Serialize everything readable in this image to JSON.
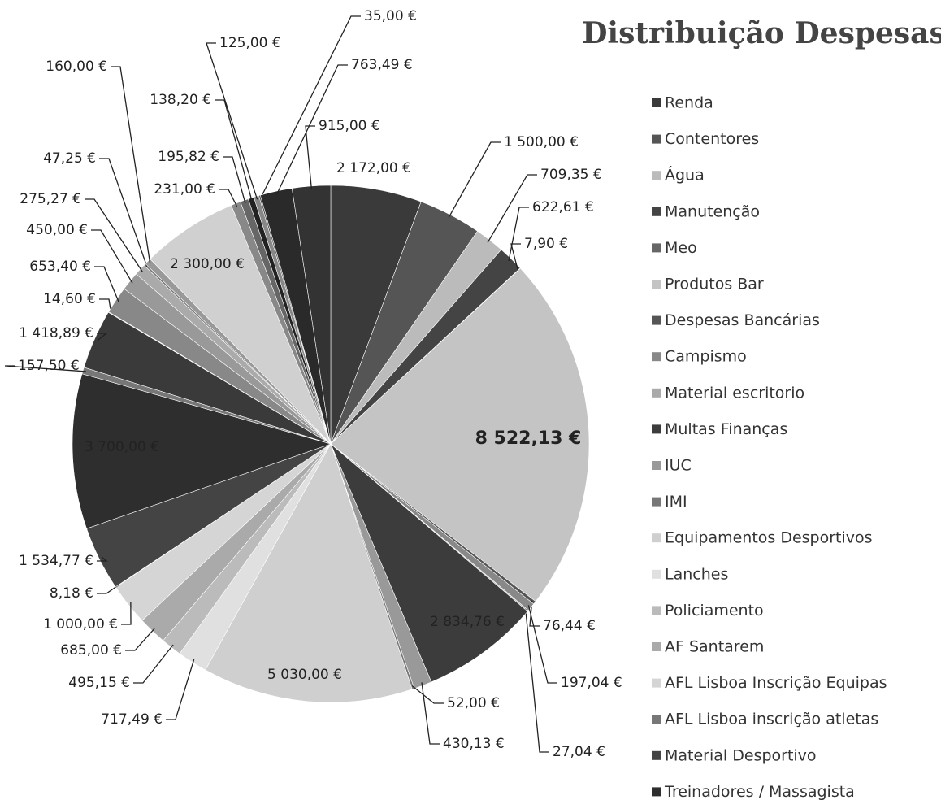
{
  "chart_data": {
    "type": "pie",
    "title": "Distribuição Despesas",
    "categories": [
      "Renda",
      "Contentores",
      "Água",
      "Manutenção",
      "Meo",
      "Produtos Bar",
      "Despesas  Bancárias",
      "Campismo",
      "Material escritorio",
      "Multas Finanças",
      "IUC",
      "IMI",
      "Equipamentos Desportivos",
      "Lanches",
      "Policiamento",
      "AF Santarem",
      "AFL Lisboa Inscrição Equipas",
      "AFL Lisboa inscrição atletas",
      "Material Desportivo",
      "Treinadores /  Massagista",
      null,
      null,
      null,
      null,
      null,
      null,
      null,
      null,
      null,
      null,
      null,
      null,
      null,
      null,
      null,
      null
    ],
    "values": [
      2172,
      1500,
      709.35,
      622.61,
      7.9,
      8522.13,
      76.44,
      197.04,
      27.04,
      2834.76,
      430.13,
      52,
      5030,
      717.49,
      495.15,
      685,
      1000,
      8.18,
      1534.77,
      3700,
      157.5,
      1418.89,
      14.6,
      653.4,
      450,
      275.27,
      47.25,
      160,
      2300,
      231,
      195.82,
      138.2,
      125,
      35,
      763.49,
      915
    ],
    "value_labels": [
      "2 172,00 €",
      "1 500,00 €",
      "709,35 €",
      "622,61 €",
      "7,90 €",
      "8 522,13 €",
      "76,44 €",
      "197,04 €",
      "27,04 €",
      "2 834,76 €",
      "430,13 €",
      "52,00 €",
      "5 030,00 €",
      "717,49 €",
      "495,15 €",
      "685,00 €",
      "1 000,00 €",
      "8,18 €",
      "1 534,77 €",
      "3 700,00 €",
      "157,50 €",
      "1 418,89 €",
      "14,60 €",
      "653,40 €",
      "450,00 €",
      "275,27 €",
      "47,25 €",
      "160,00 €",
      "2 300,00 €",
      "231,00 €",
      "195,82 €",
      "138,20 €",
      "125,00 €",
      "35,00 €",
      "763,49 €",
      "915,00 €"
    ],
    "colors": [
      "#3a3a3a",
      "#555555",
      "#bbbbbb",
      "#444444",
      "#666666",
      "#c4c4c4",
      "#555555",
      "#888888",
      "#aaaaaa",
      "#3c3c3c",
      "#999999",
      "#777777",
      "#cfcfcf",
      "#e0e0e0",
      "#bbbbbb",
      "#aaaaaa",
      "#d5d5d5",
      "#777777",
      "#444444",
      "#2e2e2e",
      "#777777",
      "#3a3a3a",
      "#666666",
      "#888888",
      "#999999",
      "#aaaaaa",
      "#777777",
      "#999999",
      "#d0d0d0",
      "#888888",
      "#666666",
      "#222222",
      "#888888",
      "#444444",
      "#2a2a2a",
      "#333333"
    ]
  }
}
